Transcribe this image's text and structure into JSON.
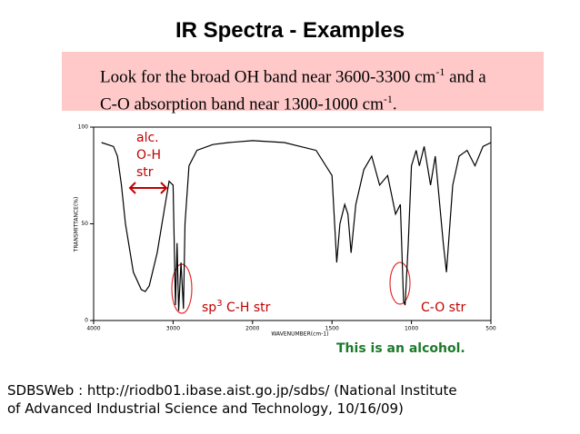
{
  "title": "IR Spectra - Examples",
  "note": {
    "text1": "Look for the broad OH band near 3600-3300 cm",
    "sup1": "-1",
    "text2": " and a",
    "text3": "C-O absorption band near 1300-1000 cm",
    "sup2": "-1",
    "text4": "."
  },
  "conclusion": "This is an alcohol.",
  "footer": [
    "SDBSWeb : http://riodb01.ibase.aist.go.jp/sdbs/ (National Institute",
    "of Advanced Industrial Science and Technology, 10/16/09)"
  ],
  "chart_data": {
    "type": "line",
    "xlabel": "WAVENUMBER(cm-1)",
    "ylabel": "TRANSMITTANCE(%)",
    "xlim": [
      4000,
      500
    ],
    "xticks": [
      4000,
      3000,
      2000,
      1500,
      1000,
      500
    ],
    "ylim": [
      0,
      100
    ],
    "yticks": [
      0,
      50,
      100
    ],
    "color": "#000000",
    "grid": false,
    "annotations": {
      "oh": [
        "alc.",
        "O-H",
        "str"
      ],
      "ch": [
        "sp",
        "3",
        " C-H str"
      ],
      "co": "C-O str"
    },
    "x": [
      3900,
      3750,
      3700,
      3650,
      3600,
      3500,
      3400,
      3350,
      3300,
      3200,
      3100,
      3050,
      3000,
      2970,
      2950,
      2930,
      2900,
      2870,
      2850,
      2800,
      2700,
      2500,
      2300,
      2000,
      1800,
      1700,
      1600,
      1500,
      1470,
      1450,
      1420,
      1400,
      1380,
      1350,
      1300,
      1250,
      1200,
      1150,
      1100,
      1070,
      1050,
      1040,
      1020,
      1000,
      970,
      950,
      920,
      880,
      850,
      800,
      780,
      740,
      700,
      650,
      600,
      550,
      500
    ],
    "values": [
      92,
      90,
      85,
      70,
      50,
      25,
      16,
      15,
      18,
      35,
      60,
      72,
      70,
      8,
      40,
      5,
      30,
      6,
      50,
      80,
      88,
      91,
      92,
      93,
      92,
      90,
      88,
      75,
      30,
      50,
      60,
      55,
      35,
      60,
      78,
      85,
      70,
      75,
      55,
      60,
      10,
      8,
      40,
      80,
      88,
      80,
      90,
      70,
      85,
      40,
      25,
      70,
      85,
      88,
      80,
      90,
      92
    ]
  }
}
